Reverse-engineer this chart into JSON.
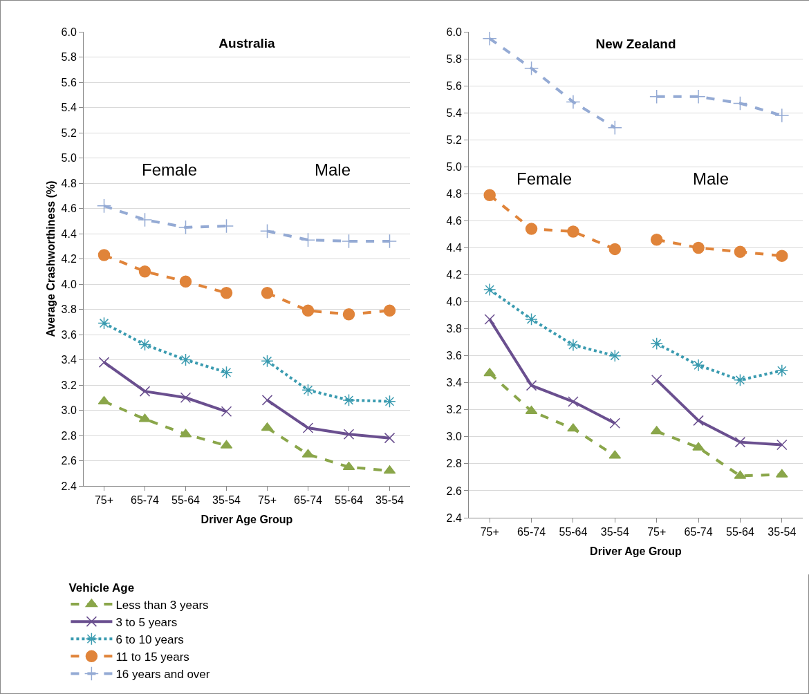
{
  "chart_data": [
    {
      "type": "line",
      "title": "Australia",
      "xlabel": "Driver Age Group",
      "ylabel": "Average Crashworthiness (%)",
      "legend_title": "Vehicle Age",
      "categories": [
        "75+",
        "65-74",
        "55-64",
        "35-54",
        "75+",
        "65-74",
        "55-64",
        "35-54"
      ],
      "annotations": [
        "Female",
        "Male"
      ],
      "ylim": [
        2.4,
        6.0
      ],
      "yticks": [
        {
          "value": 2.4,
          "label": "2.4"
        },
        {
          "value": 2.6,
          "label": "2.6"
        },
        {
          "value": 2.8,
          "label": "2.8"
        },
        {
          "value": 3.0,
          "label": "3.0"
        },
        {
          "value": 3.2,
          "label": "3.2"
        },
        {
          "value": 3.4,
          "label": "3.4"
        },
        {
          "value": 3.6,
          "label": "3.6"
        },
        {
          "value": 3.8,
          "label": "3.8"
        },
        {
          "value": 4.0,
          "label": "4.0"
        },
        {
          "value": 4.2,
          "label": "4.2"
        },
        {
          "value": 4.4,
          "label": "4.4"
        },
        {
          "value": 4.6,
          "label": "4.6"
        },
        {
          "value": 4.8,
          "label": "4.8"
        },
        {
          "value": 5.0,
          "label": "5.0"
        },
        {
          "value": 5.2,
          "label": "5.2"
        },
        {
          "value": 5.4,
          "label": "5.4"
        },
        {
          "value": 5.6,
          "label": "5.6"
        },
        {
          "value": 5.8,
          "label": "5.8"
        },
        {
          "value": 6.0,
          "label": "6.0"
        }
      ],
      "grid": "y",
      "legend": "bottom",
      "series": [
        {
          "name": "Less than 3 years",
          "color": "#8aa64a",
          "marker": "triangle",
          "line_style": "dashed",
          "values": [
            3.07,
            2.93,
            2.81,
            2.72,
            2.86,
            2.65,
            2.55,
            2.52
          ]
        },
        {
          "name": "3 to 5 years",
          "color": "#6a4f8f",
          "marker": "cross",
          "line_style": "solid",
          "values": [
            3.38,
            3.15,
            3.1,
            2.99,
            3.08,
            2.86,
            2.81,
            2.78
          ]
        },
        {
          "name": "6 to 10 years",
          "color": "#3a9bb0",
          "marker": "cross",
          "line_style": "dotted",
          "values": [
            3.69,
            3.52,
            3.4,
            3.3,
            3.39,
            3.16,
            3.08,
            3.07
          ]
        },
        {
          "name": "11 to 15 years",
          "color": "#e0843a",
          "marker": "circle",
          "line_style": "dashed",
          "values": [
            4.23,
            4.1,
            4.02,
            3.93,
            3.93,
            3.79,
            3.76,
            3.79
          ]
        },
        {
          "name": "16 years and over",
          "color": "#94aad4",
          "marker": "cross",
          "line_style": "dashed",
          "values": [
            4.62,
            4.51,
            4.45,
            4.46,
            4.42,
            4.35,
            4.34,
            4.34
          ]
        }
      ]
    },
    {
      "type": "line",
      "title": "New Zealand",
      "xlabel": "Driver Age Group",
      "categories": [
        "75+",
        "65-74",
        "55-64",
        "35-54",
        "75+",
        "65-74",
        "55-64",
        "35-54"
      ],
      "annotations": [
        "Female",
        "Male"
      ],
      "ylim": [
        2.4,
        6.0
      ],
      "yticks": [
        {
          "value": 2.4,
          "label": "2.4"
        },
        {
          "value": 2.6,
          "label": "2.6"
        },
        {
          "value": 2.8,
          "label": "2.8"
        },
        {
          "value": 3.0,
          "label": "3.0"
        },
        {
          "value": 3.2,
          "label": "3.2"
        },
        {
          "value": 3.4,
          "label": "3.4"
        },
        {
          "value": 3.6,
          "label": "3.6"
        },
        {
          "value": 3.8,
          "label": "3.8"
        },
        {
          "value": 4.0,
          "label": "4.0"
        },
        {
          "value": 4.2,
          "label": "4.2"
        },
        {
          "value": 4.4,
          "label": "4.4"
        },
        {
          "value": 4.6,
          "label": "4.6"
        },
        {
          "value": 4.8,
          "label": "4.8"
        },
        {
          "value": 5.0,
          "label": "5.0"
        },
        {
          "value": 5.2,
          "label": "5.2"
        },
        {
          "value": 5.4,
          "label": "5.4"
        },
        {
          "value": 5.6,
          "label": "5.6"
        },
        {
          "value": 5.8,
          "label": "5.8"
        },
        {
          "value": 6.0,
          "label": "6.0"
        }
      ],
      "grid": "y",
      "series": [
        {
          "color": "#8aa64a",
          "marker": "triangle",
          "line_style": "dashed",
          "values": [
            3.47,
            3.19,
            3.06,
            2.86,
            3.04,
            2.92,
            2.71,
            2.72
          ]
        },
        {
          "color": "#6a4f8f",
          "marker": "cross",
          "line_style": "solid",
          "values": [
            3.87,
            3.38,
            3.26,
            3.1,
            3.42,
            3.12,
            2.96,
            2.94
          ]
        },
        {
          "color": "#3a9bb0",
          "marker": "cross",
          "line_style": "dotted",
          "values": [
            4.09,
            3.87,
            3.68,
            3.6,
            3.69,
            3.53,
            3.42,
            3.49
          ]
        },
        {
          "color": "#e0843a",
          "marker": "circle",
          "line_style": "dashed",
          "values": [
            4.79,
            4.54,
            4.52,
            4.39,
            4.46,
            4.4,
            4.37,
            4.34
          ]
        },
        {
          "color": "#94aad4",
          "marker": "cross",
          "line_style": "dashed",
          "values": [
            5.95,
            5.73,
            5.48,
            5.29,
            5.52,
            5.52,
            5.47,
            5.38
          ]
        }
      ]
    }
  ]
}
